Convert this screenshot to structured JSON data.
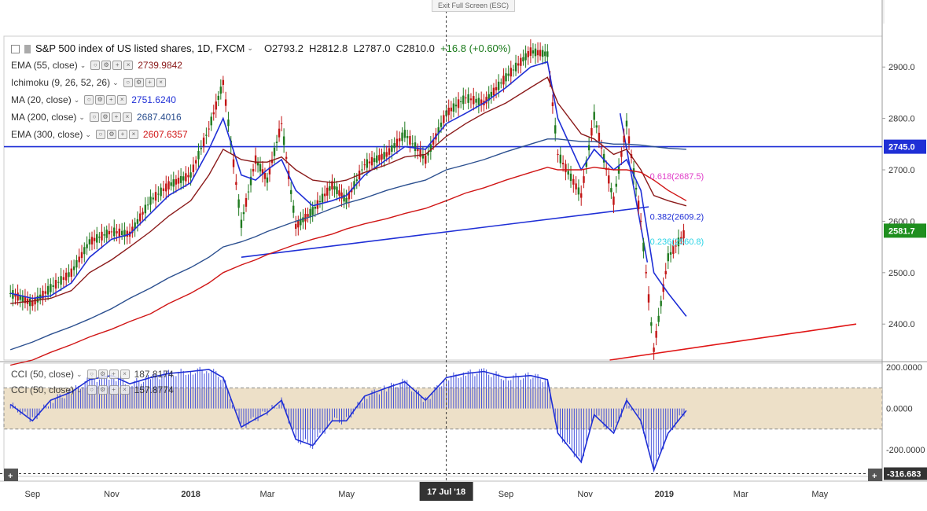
{
  "toolbar": {
    "exit_fullscreen": "Exit Full Screen (ESC)"
  },
  "header": {
    "symbol": "S&P 500 index of US listed shares, 1D, FXCM",
    "open": "O2793.2",
    "high": "H2812.8",
    "low": "L2787.0",
    "close": "C2810.0",
    "change": "+16.8 (+0.60%)"
  },
  "indicators": [
    {
      "name": "EMA (55, close)",
      "value": "2739.9842",
      "color": "#8b1a1a"
    },
    {
      "name": "Ichimoku (9, 26, 52, 26)",
      "value": "",
      "color": "#555555"
    },
    {
      "name": "MA (20, close)",
      "value": "2751.6240",
      "color": "#1f2fd6"
    },
    {
      "name": "MA (200, close)",
      "value": "2687.4016",
      "color": "#2b4f8f"
    },
    {
      "name": "EMA (300, close)",
      "value": "2607.6357",
      "color": "#d01515"
    }
  ],
  "cci_indicators": [
    {
      "name": "CCI (50, close)",
      "value": "187.8174"
    },
    {
      "name": "CCI (50, close)",
      "value": "157.8774"
    }
  ],
  "price_axis": {
    "ticks": [
      "2900.0",
      "2800.0",
      "2700.0",
      "2600.0",
      "2500.0",
      "2400.0"
    ],
    "current_price": "2581.7",
    "hline_price": "2745.0",
    "current_color": "#1f8f1f",
    "hline_color": "#1f2fd6"
  },
  "cci_axis": {
    "ticks": [
      "200.0000",
      "0.0000",
      "-200.0000"
    ],
    "current": "-316.683"
  },
  "time_axis": {
    "ticks": [
      "Sep",
      "Nov",
      "2018",
      "Mar",
      "May",
      "Jul",
      "Sep",
      "Nov",
      "2019",
      "Mar",
      "May"
    ],
    "crosshair_label": "17 Jul '18"
  },
  "fib_labels": [
    {
      "text": "0.618(2687.5)",
      "color": "#e03cc8"
    },
    {
      "text": "0.382(2609.2)",
      "color": "#1f2fd6"
    },
    {
      "text": "0.236(2560.8)",
      "color": "#2ad4e6"
    }
  ],
  "chart_data": {
    "type": "line",
    "title": "S&P 500 index of US listed shares, 1D, FXCM",
    "price_range": [
      2330,
      2960
    ],
    "cci_range": [
      -330,
      220
    ],
    "series": [
      {
        "name": "Price",
        "color": "#2a8a2a",
        "x": [
          "2017-08-15",
          "2017-09-01",
          "2017-09-15",
          "2017-10-01",
          "2017-10-15",
          "2017-11-01",
          "2017-11-15",
          "2017-12-01",
          "2017-12-15",
          "2018-01-01",
          "2018-01-15",
          "2018-01-26",
          "2018-02-09",
          "2018-02-20",
          "2018-03-01",
          "2018-03-12",
          "2018-03-23",
          "2018-04-05",
          "2018-04-20",
          "2018-05-01",
          "2018-05-15",
          "2018-06-01",
          "2018-06-15",
          "2018-07-01",
          "2018-07-17",
          "2018-08-01",
          "2018-08-15",
          "2018-09-01",
          "2018-09-20",
          "2018-10-03",
          "2018-10-11",
          "2018-10-29",
          "2018-11-08",
          "2018-11-23",
          "2018-12-03",
          "2018-12-14",
          "2018-12-24",
          "2019-01-04",
          "2019-01-18"
        ],
        "values": [
          2460,
          2440,
          2470,
          2500,
          2560,
          2580,
          2575,
          2640,
          2670,
          2690,
          2780,
          2870,
          2595,
          2720,
          2680,
          2790,
          2590,
          2620,
          2670,
          2640,
          2710,
          2730,
          2770,
          2720,
          2810,
          2840,
          2830,
          2880,
          2930,
          2925,
          2730,
          2650,
          2805,
          2640,
          2790,
          2600,
          2350,
          2530,
          2582
        ]
      },
      {
        "name": "MA (20, close)",
        "color": "#1f2fd6",
        "values": [
          2460,
          2450,
          2455,
          2480,
          2530,
          2565,
          2575,
          2615,
          2650,
          2675,
          2740,
          2800,
          2690,
          2680,
          2700,
          2720,
          2660,
          2630,
          2640,
          2650,
          2690,
          2720,
          2745,
          2740,
          2790,
          2810,
          2830,
          2860,
          2900,
          2910,
          2800,
          2700,
          2740,
          2700,
          2720,
          2660,
          2500,
          2460,
          2415
        ]
      },
      {
        "name": "EMA (55, close)",
        "color": "#8b1a1a",
        "values": [
          2440,
          2445,
          2450,
          2465,
          2500,
          2525,
          2550,
          2580,
          2610,
          2640,
          2690,
          2740,
          2720,
          2715,
          2715,
          2725,
          2700,
          2680,
          2675,
          2680,
          2695,
          2710,
          2725,
          2730,
          2765,
          2790,
          2810,
          2830,
          2860,
          2880,
          2830,
          2770,
          2760,
          2730,
          2740,
          2700,
          2650,
          2640,
          2630
        ]
      },
      {
        "name": "MA (200, close)",
        "color": "#2b4f8f",
        "values": [
          2350,
          2365,
          2380,
          2395,
          2410,
          2430,
          2450,
          2470,
          2490,
          2510,
          2530,
          2550,
          2560,
          2570,
          2580,
          2590,
          2600,
          2610,
          2625,
          2635,
          2645,
          2660,
          2670,
          2680,
          2700,
          2710,
          2720,
          2735,
          2750,
          2760,
          2760,
          2755,
          2755,
          2750,
          2750,
          2748,
          2745,
          2742,
          2740
        ]
      },
      {
        "name": "EMA (300, close)",
        "color": "#d01515",
        "values": [
          2320,
          2330,
          2345,
          2360,
          2375,
          2390,
          2405,
          2420,
          2440,
          2460,
          2480,
          2500,
          2515,
          2525,
          2535,
          2545,
          2555,
          2565,
          2575,
          2585,
          2595,
          2605,
          2615,
          2625,
          2640,
          2655,
          2665,
          2680,
          2695,
          2705,
          2700,
          2700,
          2705,
          2700,
          2700,
          2695,
          2680,
          2660,
          2640
        ]
      },
      {
        "name": "CCI (50, close)",
        "color": "#1f2fd6",
        "values": [
          20,
          -60,
          40,
          80,
          140,
          160,
          120,
          150,
          170,
          180,
          190,
          150,
          -90,
          -50,
          -20,
          40,
          -150,
          -180,
          -60,
          -60,
          60,
          100,
          130,
          40,
          150,
          170,
          180,
          150,
          160,
          140,
          -120,
          -260,
          -30,
          -120,
          40,
          -60,
          -300,
          -120,
          -10
        ]
      }
    ],
    "hline": 2745.0,
    "cci_band": [
      -100,
      100
    ]
  }
}
